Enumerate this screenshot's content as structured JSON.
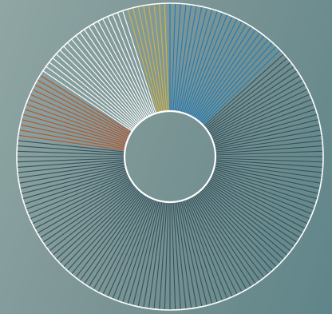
{
  "chart_data": {
    "type": "pie",
    "style": "donut-of-radial-lines",
    "title": "",
    "total_lines": 180,
    "series": [
      {
        "color": "#1e7ab8",
        "lines": 24
      },
      {
        "color": "#33505b",
        "lines": 115
      },
      {
        "color": "#b8542b",
        "lines": 13
      },
      {
        "color": "#ffffff",
        "lines": 20
      },
      {
        "color": "#d4b445",
        "lines": 8
      }
    ],
    "start_angle_deg": 0,
    "direction": "clockwise",
    "outer_ring_color": "#ffffff",
    "inner_ring_color": "#ffffff",
    "legend": "none"
  }
}
